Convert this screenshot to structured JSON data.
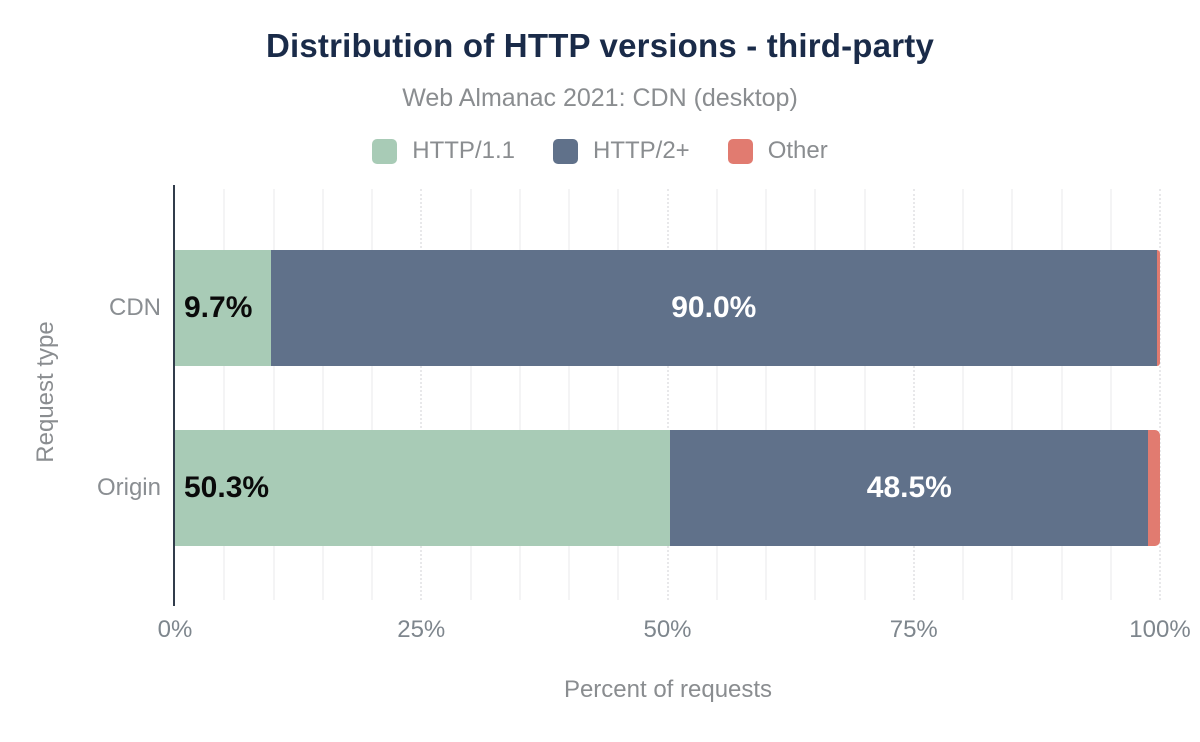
{
  "chart_data": {
    "type": "bar",
    "orientation": "horizontal",
    "stacked": true,
    "title": "Distribution of HTTP versions - third-party",
    "subtitle": "Web Almanac 2021: CDN (desktop)",
    "xlabel": "Percent of requests",
    "ylabel": "Request type",
    "categories": [
      "CDN",
      "Origin"
    ],
    "series": [
      {
        "name": "HTTP/1.1",
        "color": "#a8cbb6",
        "values": [
          9.7,
          50.3
        ]
      },
      {
        "name": "HTTP/2+",
        "color": "#60718a",
        "values": [
          90.0,
          48.5
        ]
      },
      {
        "name": "Other",
        "color": "#e17b70",
        "values": [
          0.3,
          1.2
        ]
      }
    ],
    "value_labels": [
      [
        "9.7%",
        "90.0%",
        ""
      ],
      [
        "50.3%",
        "48.5%",
        ""
      ]
    ],
    "xticks": [
      "0%",
      "25%",
      "50%",
      "75%",
      "100%"
    ],
    "xlim": [
      0,
      100
    ],
    "grid": {
      "minor_step_pct": 5,
      "major_step_pct": 25
    },
    "legend_position": "top",
    "colors": {
      "title": "#1a2b49",
      "muted_text": "#8a8d90",
      "axis_line": "#313c4b",
      "bar_label_dark": "#0a0a0a",
      "bar_label_light": "#ffffff"
    }
  }
}
